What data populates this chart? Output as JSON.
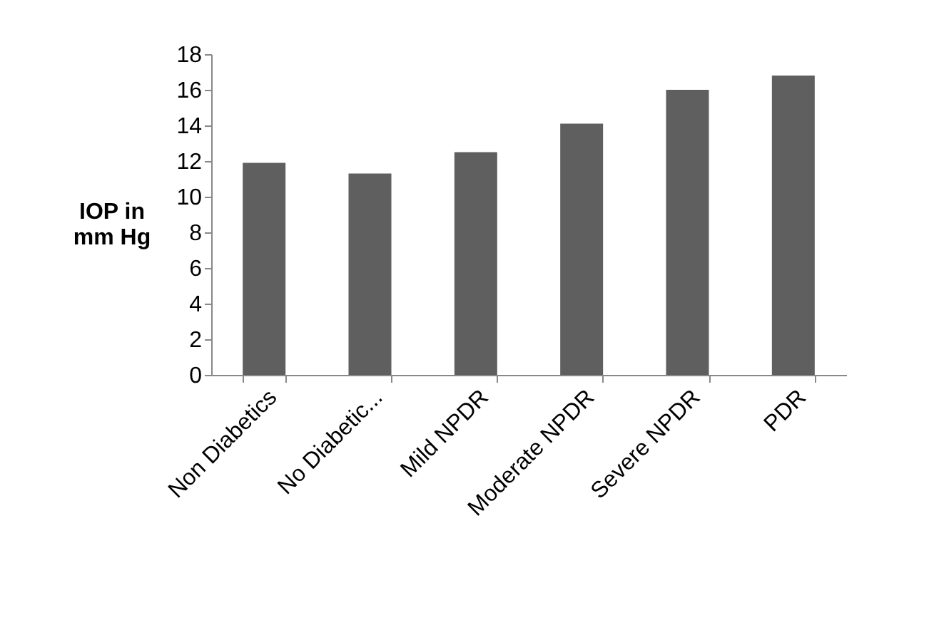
{
  "chart_data": {
    "type": "bar",
    "ylabel": "IOP in\nmm Hg",
    "categories": [
      "Non Diabetics",
      "No Diabetic...",
      "Mild NPDR",
      "Moderate NPDR",
      "Severe NPDR",
      "PDR"
    ],
    "values": [
      11.9,
      11.3,
      12.5,
      14.1,
      16.0,
      16.8
    ],
    "color": "#5f5f5f",
    "ylim": [
      0,
      18
    ],
    "yticks": [
      0,
      2,
      4,
      6,
      8,
      10,
      12,
      14,
      16,
      18
    ],
    "grid": false
  }
}
